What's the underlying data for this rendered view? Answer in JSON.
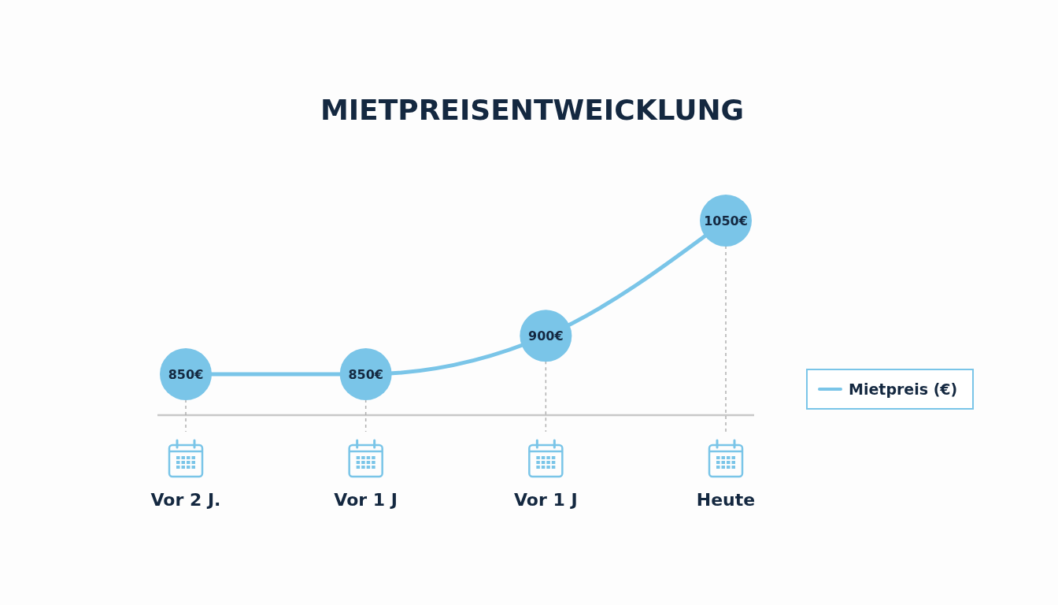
{
  "chart_data": {
    "type": "line",
    "title": "MIETPREISENTWEICKLUNG",
    "categories": [
      "Vor 2 J.",
      "Vor 1 J",
      "Vor 1 J",
      "Heute"
    ],
    "series": [
      {
        "name": "Mietpreis (€)",
        "color": "#7ac5e8",
        "values": [
          850,
          850,
          900,
          1050
        ]
      },
      {
        "type": "scatter",
        "color": "#7ac5e8",
        "values": [
          850,
          850,
          900,
          1050
        ],
        "value_labels": [
          "850€",
          "850€",
          "900€",
          "1050€"
        ]
      }
    ],
    "legend": "right",
    "grid": "x"
  }
}
